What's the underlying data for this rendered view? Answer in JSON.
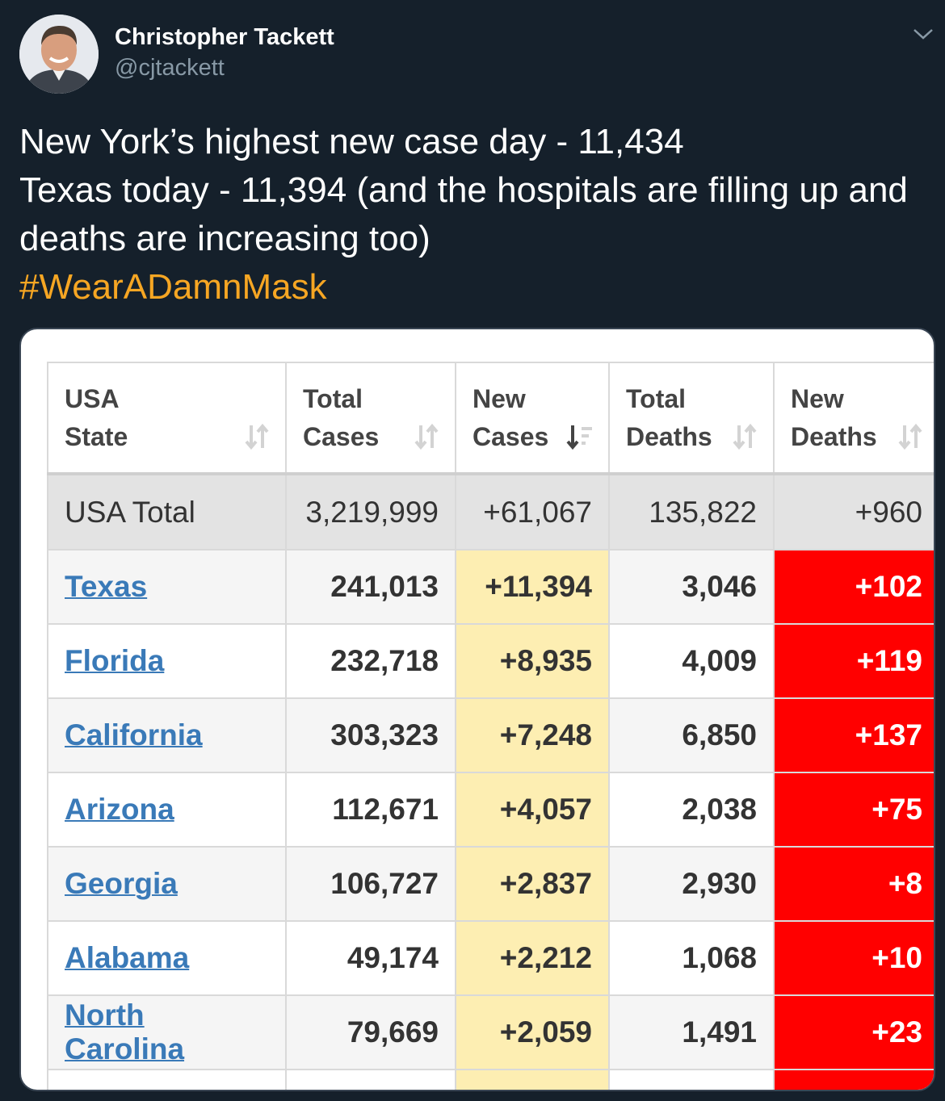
{
  "tweet": {
    "author_name": "Christopher Tackett",
    "author_handle": "@cjtackett",
    "text_lines": [
      "New York’s highest new case day - 11,434",
      "Texas today - 11,394 (and the hospitals are filling up and",
      "deaths are increasing too)"
    ],
    "hashtag": "#WearADamnMask"
  },
  "table": {
    "headers": [
      [
        "USA",
        "State"
      ],
      [
        "Total",
        "Cases"
      ],
      [
        "New",
        "Cases"
      ],
      [
        "Total",
        "Deaths"
      ],
      [
        "New",
        "Deaths"
      ]
    ],
    "total_row": {
      "label": "USA Total",
      "total_cases": "3,219,999",
      "new_cases": "+61,067",
      "total_deaths": "135,822",
      "new_deaths": "+960"
    },
    "rows": [
      {
        "state": "Texas",
        "total_cases": "241,013",
        "new_cases": "+11,394",
        "total_deaths": "3,046",
        "new_deaths": "+102"
      },
      {
        "state": "Florida",
        "total_cases": "232,718",
        "new_cases": "+8,935",
        "total_deaths": "4,009",
        "new_deaths": "+119"
      },
      {
        "state": "California",
        "total_cases": "303,323",
        "new_cases": "+7,248",
        "total_deaths": "6,850",
        "new_deaths": "+137"
      },
      {
        "state": "Arizona",
        "total_cases": "112,671",
        "new_cases": "+4,057",
        "total_deaths": "2,038",
        "new_deaths": "+75"
      },
      {
        "state": "Georgia",
        "total_cases": "106,727",
        "new_cases": "+2,837",
        "total_deaths": "2,930",
        "new_deaths": "+8"
      },
      {
        "state": "Alabama",
        "total_cases": "49,174",
        "new_cases": "+2,212",
        "total_deaths": "1,068",
        "new_deaths": "+10"
      },
      {
        "state": "North Carolina",
        "total_cases": "79,669",
        "new_cases": "+2,059",
        "total_deaths": "1,491",
        "new_deaths": "+23"
      }
    ]
  },
  "colors": {
    "background": "#15202b",
    "hashtag": "#f6a623",
    "new_cases_highlight": "#fdeeb2",
    "new_deaths_highlight": "#ff0000",
    "link": "#3a7ab8"
  }
}
